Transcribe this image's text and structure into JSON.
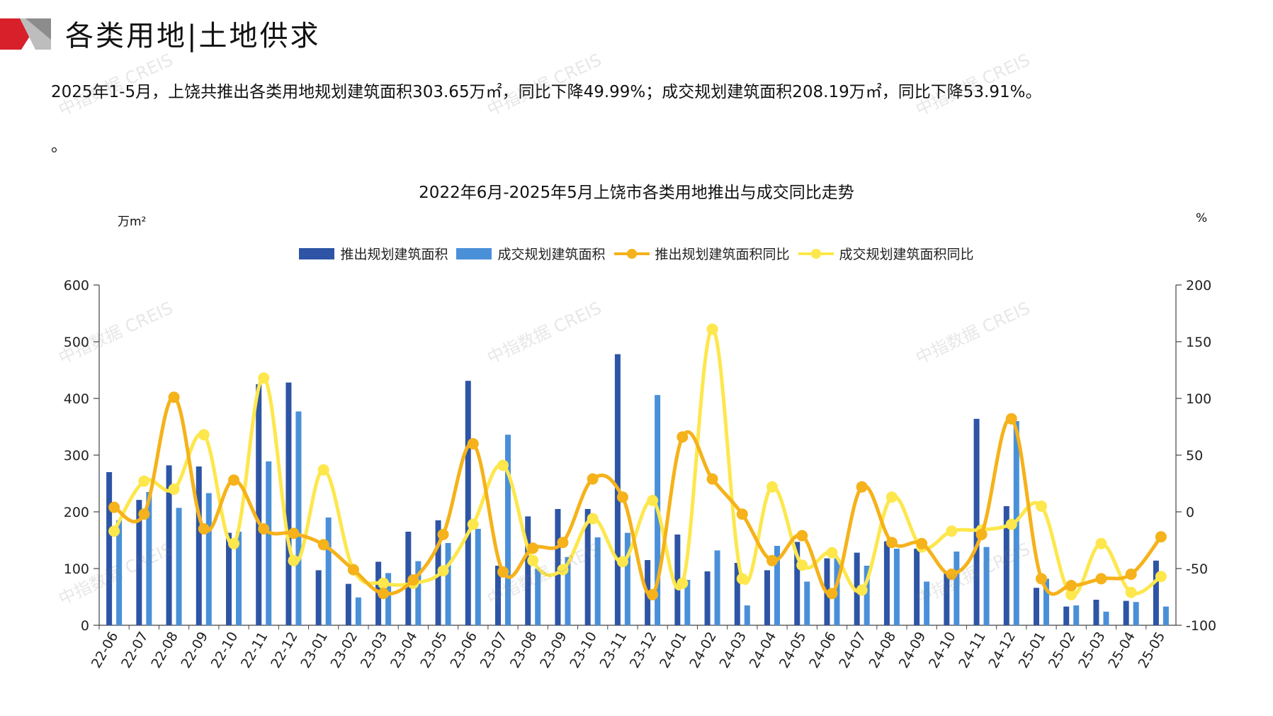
{
  "header": {
    "title": "各类用地|土地供求"
  },
  "summary": {
    "text": "2025年1-5月，上饶共推出各类用地规划建筑面积303.65万㎡，同比下降49.99%；成交规划建筑面积208.19万㎡，同比下降53.91%。",
    "tail": "。"
  },
  "watermark": "中指数据 CREIS",
  "colors": {
    "bar1": "#2e55a5",
    "bar2": "#4a90d9",
    "line1": "#f5b21a",
    "line2": "#fde74c",
    "logo_red": "#d7202a",
    "logo_gray": "#8c8c8c"
  },
  "chart_data": {
    "type": "bar",
    "title": "2022年6月-2025年5月上饶市各类用地推出与成交同比走势",
    "ylabel": "万m²",
    "y2label": "%",
    "ylim": [
      0,
      600
    ],
    "y2lim": [
      -100,
      200
    ],
    "yticks": [
      "0",
      "100",
      "200",
      "300",
      "400",
      "500",
      "600"
    ],
    "y2ticks": [
      "-100",
      "-50",
      "0",
      "50",
      "100",
      "150",
      "200"
    ],
    "legend_position": "top-center",
    "grid": false,
    "categories": [
      "22-06",
      "22-07",
      "22-08",
      "22-09",
      "22-10",
      "22-11",
      "22-12",
      "23-01",
      "23-02",
      "23-03",
      "23-04",
      "23-05",
      "23-06",
      "23-07",
      "23-08",
      "23-09",
      "23-10",
      "23-11",
      "23-12",
      "24-01",
      "24-02",
      "24-03",
      "24-04",
      "24-05",
      "24-06",
      "24-07",
      "24-08",
      "24-09",
      "24-10",
      "24-11",
      "24-12",
      "25-01",
      "25-02",
      "25-03",
      "25-04",
      "25-05"
    ],
    "series": [
      {
        "name": "推出规划建筑面积",
        "kind": "bar",
        "axis": "left",
        "values": [
          270,
          221,
          282,
          280,
          163,
          425,
          428,
          97,
          73,
          112,
          165,
          185,
          431,
          105,
          192,
          205,
          205,
          478,
          115,
          160,
          95,
          110,
          97,
          147,
          118,
          128,
          148,
          135,
          95,
          364,
          210,
          66,
          33,
          45,
          43,
          114
        ]
      },
      {
        "name": "成交规划建筑面积",
        "kind": "bar",
        "axis": "left",
        "values": [
          185,
          235,
          207,
          233,
          165,
          289,
          377,
          190,
          49,
          92,
          113,
          145,
          170,
          336,
          100,
          120,
          155,
          163,
          406,
          80,
          132,
          35,
          140,
          77,
          118,
          105,
          135,
          77,
          130,
          138,
          360,
          82,
          35,
          24,
          41,
          33
        ]
      },
      {
        "name": "推出规划建筑面积同比",
        "kind": "line",
        "axis": "right",
        "values": [
          4,
          -2,
          101,
          -15,
          28,
          -15,
          -19,
          -29,
          -51,
          -72,
          -60,
          -20,
          60,
          -53,
          -32,
          -27,
          29,
          13,
          -73,
          66,
          29,
          -2,
          -43,
          -21,
          -72,
          22,
          -27,
          -28,
          -55,
          -20,
          82,
          -59,
          -65,
          -59,
          -55,
          -22
        ]
      },
      {
        "name": "成交规划建筑面积同比",
        "kind": "line",
        "axis": "right",
        "values": [
          -17,
          27,
          20,
          68,
          -28,
          118,
          -43,
          37,
          -51,
          -63,
          -63,
          -52,
          -11,
          41,
          -43,
          -51,
          -6,
          -44,
          10,
          -63,
          161,
          -59,
          22,
          -47,
          -36,
          -69,
          13,
          -31,
          -17,
          -16,
          -11,
          5,
          -73,
          -28,
          -71,
          -57
        ]
      }
    ]
  }
}
